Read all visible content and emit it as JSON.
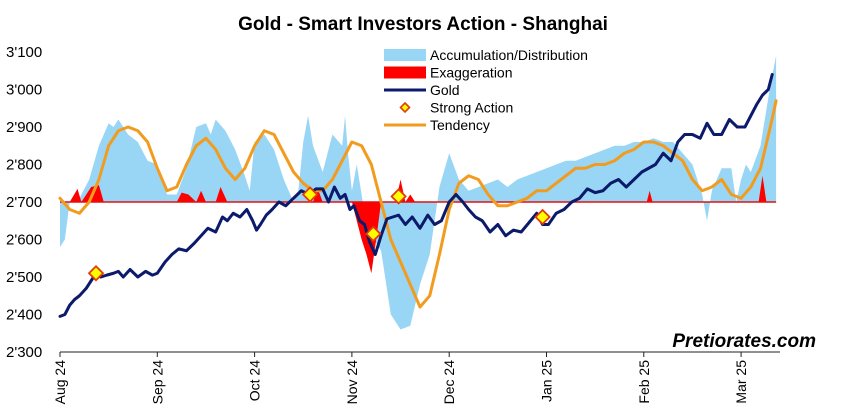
{
  "chart_data": {
    "type": "line",
    "title": "Gold - Smart Investors Action - Shanghai",
    "watermark": "Pretiorates.com",
    "xlabel": "",
    "ylabel": "",
    "ylim": [
      2300,
      3100
    ],
    "yticks": [
      {
        "value": 2300,
        "label": "2'300"
      },
      {
        "value": 2400,
        "label": "2'400"
      },
      {
        "value": 2500,
        "label": "2'500"
      },
      {
        "value": 2600,
        "label": "2'600"
      },
      {
        "value": 2700,
        "label": "2'700"
      },
      {
        "value": 2800,
        "label": "2'800"
      },
      {
        "value": 2900,
        "label": "2'900"
      },
      {
        "value": 3000,
        "label": "3'000"
      },
      {
        "value": 3100,
        "label": "3'100"
      }
    ],
    "xlim": [
      0,
      7.4
    ],
    "xticks": [
      {
        "value": 0,
        "label": "Aug 24"
      },
      {
        "value": 1,
        "label": "Sep 24"
      },
      {
        "value": 2,
        "label": "Oct 24"
      },
      {
        "value": 3,
        "label": "Nov 24"
      },
      {
        "value": 4,
        "label": "Dec 24"
      },
      {
        "value": 5,
        "label": "Jan 25"
      },
      {
        "value": 6,
        "label": "Feb 25"
      },
      {
        "value": 7,
        "label": "Mar 25"
      }
    ],
    "baseline": 2700,
    "legend": {
      "position": "top-right",
      "entries": [
        {
          "name": "Accumulation/Distribution",
          "color": "#99d6f5",
          "kind": "area"
        },
        {
          "name": "Exaggeration",
          "color": "#ff0000",
          "kind": "area"
        },
        {
          "name": "Gold",
          "color": "#0b1a6b",
          "kind": "line"
        },
        {
          "name": "Strong Action",
          "color": "#e53b0b",
          "fill": "#ffff00",
          "kind": "marker"
        },
        {
          "name": "Tendency",
          "color": "#f29c1f",
          "kind": "line"
        }
      ]
    },
    "series": [
      {
        "name": "Gold",
        "color": "#0b1a6b",
        "x": [
          0.0,
          0.05,
          0.1,
          0.15,
          0.2,
          0.27,
          0.32,
          0.37,
          0.42,
          0.48,
          0.55,
          0.6,
          0.65,
          0.72,
          0.8,
          0.88,
          0.95,
          1.0,
          1.08,
          1.15,
          1.22,
          1.3,
          1.38,
          1.45,
          1.52,
          1.6,
          1.67,
          1.72,
          1.78,
          1.85,
          1.92,
          1.98,
          2.02,
          2.06,
          2.12,
          2.18,
          2.25,
          2.32,
          2.4,
          2.48,
          2.56,
          2.63,
          2.7,
          2.76,
          2.82,
          2.88,
          2.93,
          2.98,
          3.02,
          3.08,
          3.13,
          3.18,
          3.24,
          3.3,
          3.36,
          3.42,
          3.48,
          3.55,
          3.62,
          3.7,
          3.78,
          3.85,
          3.92,
          4.0,
          4.07,
          4.14,
          4.2,
          4.27,
          4.34,
          4.42,
          4.5,
          4.58,
          4.66,
          4.74,
          4.82,
          4.9,
          4.96,
          5.02,
          5.1,
          5.18,
          5.26,
          5.34,
          5.42,
          5.5,
          5.58,
          5.66,
          5.74,
          5.82,
          5.9,
          5.98,
          6.05,
          6.12,
          6.2,
          6.28,
          6.35,
          6.42,
          6.5,
          6.58,
          6.65,
          6.72,
          6.8,
          6.88,
          6.96,
          7.04,
          7.1,
          7.16,
          7.22,
          7.28,
          7.32
        ],
        "values": [
          2395,
          2400,
          2425,
          2440,
          2450,
          2470,
          2490,
          2510,
          2500,
          2505,
          2510,
          2515,
          2500,
          2520,
          2500,
          2515,
          2505,
          2510,
          2540,
          2560,
          2575,
          2570,
          2590,
          2610,
          2630,
          2620,
          2660,
          2650,
          2670,
          2660,
          2680,
          2650,
          2625,
          2640,
          2665,
          2680,
          2700,
          2690,
          2710,
          2730,
          2720,
          2735,
          2735,
          2700,
          2740,
          2710,
          2720,
          2680,
          2690,
          2650,
          2640,
          2595,
          2560,
          2610,
          2655,
          2660,
          2665,
          2640,
          2660,
          2630,
          2665,
          2640,
          2650,
          2700,
          2720,
          2700,
          2680,
          2660,
          2650,
          2620,
          2640,
          2610,
          2625,
          2620,
          2645,
          2670,
          2640,
          2640,
          2670,
          2680,
          2700,
          2710,
          2735,
          2725,
          2730,
          2750,
          2760,
          2740,
          2760,
          2780,
          2790,
          2800,
          2830,
          2810,
          2860,
          2880,
          2880,
          2870,
          2910,
          2880,
          2880,
          2920,
          2900,
          2900,
          2930,
          2960,
          2985,
          3000,
          3040
        ]
      },
      {
        "name": "Tendency",
        "color": "#f29c1f",
        "x": [
          0.0,
          0.1,
          0.2,
          0.3,
          0.4,
          0.5,
          0.6,
          0.7,
          0.8,
          0.9,
          1.0,
          1.1,
          1.2,
          1.3,
          1.4,
          1.5,
          1.6,
          1.7,
          1.8,
          1.9,
          2.0,
          2.1,
          2.2,
          2.3,
          2.4,
          2.5,
          2.6,
          2.7,
          2.8,
          2.9,
          3.0,
          3.1,
          3.2,
          3.3,
          3.4,
          3.5,
          3.6,
          3.7,
          3.8,
          3.9,
          4.0,
          4.1,
          4.2,
          4.3,
          4.4,
          4.5,
          4.6,
          4.7,
          4.8,
          4.9,
          5.0,
          5.1,
          5.2,
          5.3,
          5.4,
          5.5,
          5.6,
          5.7,
          5.8,
          5.9,
          6.0,
          6.1,
          6.2,
          6.3,
          6.4,
          6.5,
          6.6,
          6.7,
          6.8,
          6.9,
          7.0,
          7.1,
          7.2,
          7.3,
          7.36
        ],
        "values": [
          2710,
          2680,
          2670,
          2700,
          2760,
          2850,
          2890,
          2900,
          2890,
          2860,
          2790,
          2730,
          2740,
          2800,
          2850,
          2870,
          2840,
          2790,
          2760,
          2790,
          2850,
          2890,
          2880,
          2830,
          2780,
          2750,
          2730,
          2730,
          2760,
          2810,
          2860,
          2850,
          2800,
          2700,
          2600,
          2540,
          2480,
          2420,
          2450,
          2560,
          2680,
          2750,
          2770,
          2760,
          2720,
          2690,
          2690,
          2700,
          2710,
          2730,
          2730,
          2750,
          2770,
          2790,
          2790,
          2800,
          2800,
          2810,
          2830,
          2840,
          2860,
          2860,
          2850,
          2830,
          2810,
          2760,
          2730,
          2740,
          2760,
          2720,
          2710,
          2740,
          2790,
          2900,
          2970
        ]
      },
      {
        "name": "Accumulation/Distribution",
        "color": "#99d6f5",
        "x": [
          0.0,
          0.05,
          0.1,
          0.2,
          0.3,
          0.4,
          0.5,
          0.55,
          0.6,
          0.7,
          0.8,
          0.9,
          1.0,
          1.1,
          1.2,
          1.3,
          1.4,
          1.5,
          1.55,
          1.6,
          1.7,
          1.8,
          1.9,
          1.95,
          2.0,
          2.1,
          2.2,
          2.3,
          2.4,
          2.45,
          2.5,
          2.55,
          2.6,
          2.7,
          2.8,
          2.9,
          2.93,
          2.96,
          3.0,
          3.05,
          3.1,
          3.15,
          3.2,
          3.3,
          3.4,
          3.5,
          3.6,
          3.7,
          3.8,
          3.9,
          4.0,
          4.1,
          4.2,
          4.3,
          4.4,
          4.5,
          4.6,
          4.7,
          4.8,
          4.9,
          5.0,
          5.1,
          5.2,
          5.3,
          5.4,
          5.5,
          5.6,
          5.7,
          5.8,
          5.9,
          6.0,
          6.1,
          6.2,
          6.3,
          6.4,
          6.5,
          6.6,
          6.65,
          6.7,
          6.8,
          6.9,
          6.95,
          7.0,
          7.05,
          7.1,
          7.2,
          7.3,
          7.36
        ],
        "values": [
          2580,
          2600,
          2700,
          2710,
          2760,
          2850,
          2910,
          2900,
          2920,
          2880,
          2860,
          2810,
          2800,
          2720,
          2720,
          2790,
          2900,
          2910,
          2880,
          2920,
          2890,
          2840,
          2770,
          2730,
          2860,
          2880,
          2840,
          2760,
          2700,
          2730,
          2860,
          2930,
          2850,
          2780,
          2880,
          2850,
          2930,
          2830,
          2730,
          2800,
          2720,
          2630,
          2610,
          2570,
          2400,
          2360,
          2370,
          2480,
          2560,
          2740,
          2830,
          2760,
          2730,
          2740,
          2750,
          2760,
          2740,
          2760,
          2770,
          2780,
          2790,
          2800,
          2810,
          2810,
          2820,
          2830,
          2840,
          2850,
          2850,
          2860,
          2860,
          2870,
          2860,
          2860,
          2830,
          2800,
          2720,
          2650,
          2730,
          2790,
          2790,
          2700,
          2760,
          2800,
          2780,
          2850,
          3010,
          3090
        ]
      },
      {
        "name": "Exaggeration",
        "color": "#ff0000",
        "x": [
          0.1,
          0.18,
          0.22,
          0.32,
          0.4,
          0.45,
          1.2,
          1.25,
          1.32,
          1.4,
          1.45,
          1.5,
          1.6,
          1.65,
          1.72,
          2.6,
          2.65,
          2.7,
          3.0,
          3.05,
          3.1,
          3.15,
          3.2,
          3.25,
          3.3,
          3.35,
          3.45,
          3.5,
          3.55,
          3.6,
          3.65,
          6.03,
          6.06,
          6.09,
          7.18,
          7.22,
          7.26
        ],
        "values": [
          2700,
          2735,
          2700,
          2740,
          2745,
          2700,
          2700,
          2725,
          2720,
          2700,
          2730,
          2700,
          2700,
          2740,
          2700,
          2700,
          2735,
          2700,
          2700,
          2650,
          2600,
          2560,
          2510,
          2600,
          2700,
          2700,
          2700,
          2760,
          2700,
          2720,
          2700,
          2700,
          2730,
          2700,
          2700,
          2770,
          2700
        ]
      }
    ],
    "strong_action": [
      {
        "x": 0.37,
        "y": 2510
      },
      {
        "x": 2.57,
        "y": 2720
      },
      {
        "x": 3.22,
        "y": 2615
      },
      {
        "x": 3.48,
        "y": 2715
      },
      {
        "x": 4.96,
        "y": 2660
      }
    ]
  }
}
